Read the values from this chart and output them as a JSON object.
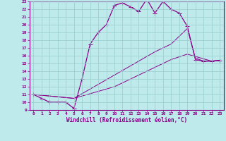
{
  "xlabel": "Windchill (Refroidissement éolien,°C)",
  "xlim": [
    -0.5,
    23.5
  ],
  "ylim": [
    9,
    23
  ],
  "yticks": [
    9,
    10,
    11,
    12,
    13,
    14,
    15,
    16,
    17,
    18,
    19,
    20,
    21,
    22,
    23
  ],
  "xticks": [
    0,
    1,
    2,
    3,
    4,
    5,
    6,
    7,
    8,
    9,
    10,
    11,
    12,
    13,
    14,
    15,
    16,
    17,
    18,
    19,
    20,
    21,
    22,
    23
  ],
  "background_color": "#beeaec",
  "grid_color": "#99cccc",
  "line_color": "#880088",
  "lines": [
    {
      "x": [
        0,
        1,
        2,
        3,
        4,
        5,
        6,
        7,
        8,
        9,
        10,
        11,
        12,
        13,
        14,
        15,
        16,
        17,
        18,
        19,
        20,
        21,
        22,
        23
      ],
      "y": [
        11,
        10.5,
        10,
        10,
        10,
        9.2,
        13,
        17.5,
        19,
        20,
        22.5,
        22.8,
        22.3,
        21.7,
        23.3,
        21.5,
        23,
        22,
        21.5,
        19.8,
        15.5,
        15.3,
        15.3,
        15.4
      ],
      "style": "solid",
      "marker": true,
      "linewidth": 0.9,
      "markersize": 2.5
    },
    {
      "x": [
        0,
        5,
        10,
        15,
        17,
        19,
        20,
        21,
        22,
        23
      ],
      "y": [
        11,
        10.5,
        13.5,
        16.5,
        17.5,
        19.5,
        15.7,
        15.3,
        15.3,
        15.4
      ],
      "style": "solid",
      "marker": false,
      "linewidth": 0.7,
      "markersize": 0
    },
    {
      "x": [
        0,
        5,
        10,
        15,
        17,
        19,
        22,
        23
      ],
      "y": [
        11,
        10.5,
        12,
        14.5,
        15.5,
        16.2,
        15.3,
        15.4
      ],
      "style": "solid",
      "marker": false,
      "linewidth": 0.7,
      "markersize": 0
    }
  ]
}
